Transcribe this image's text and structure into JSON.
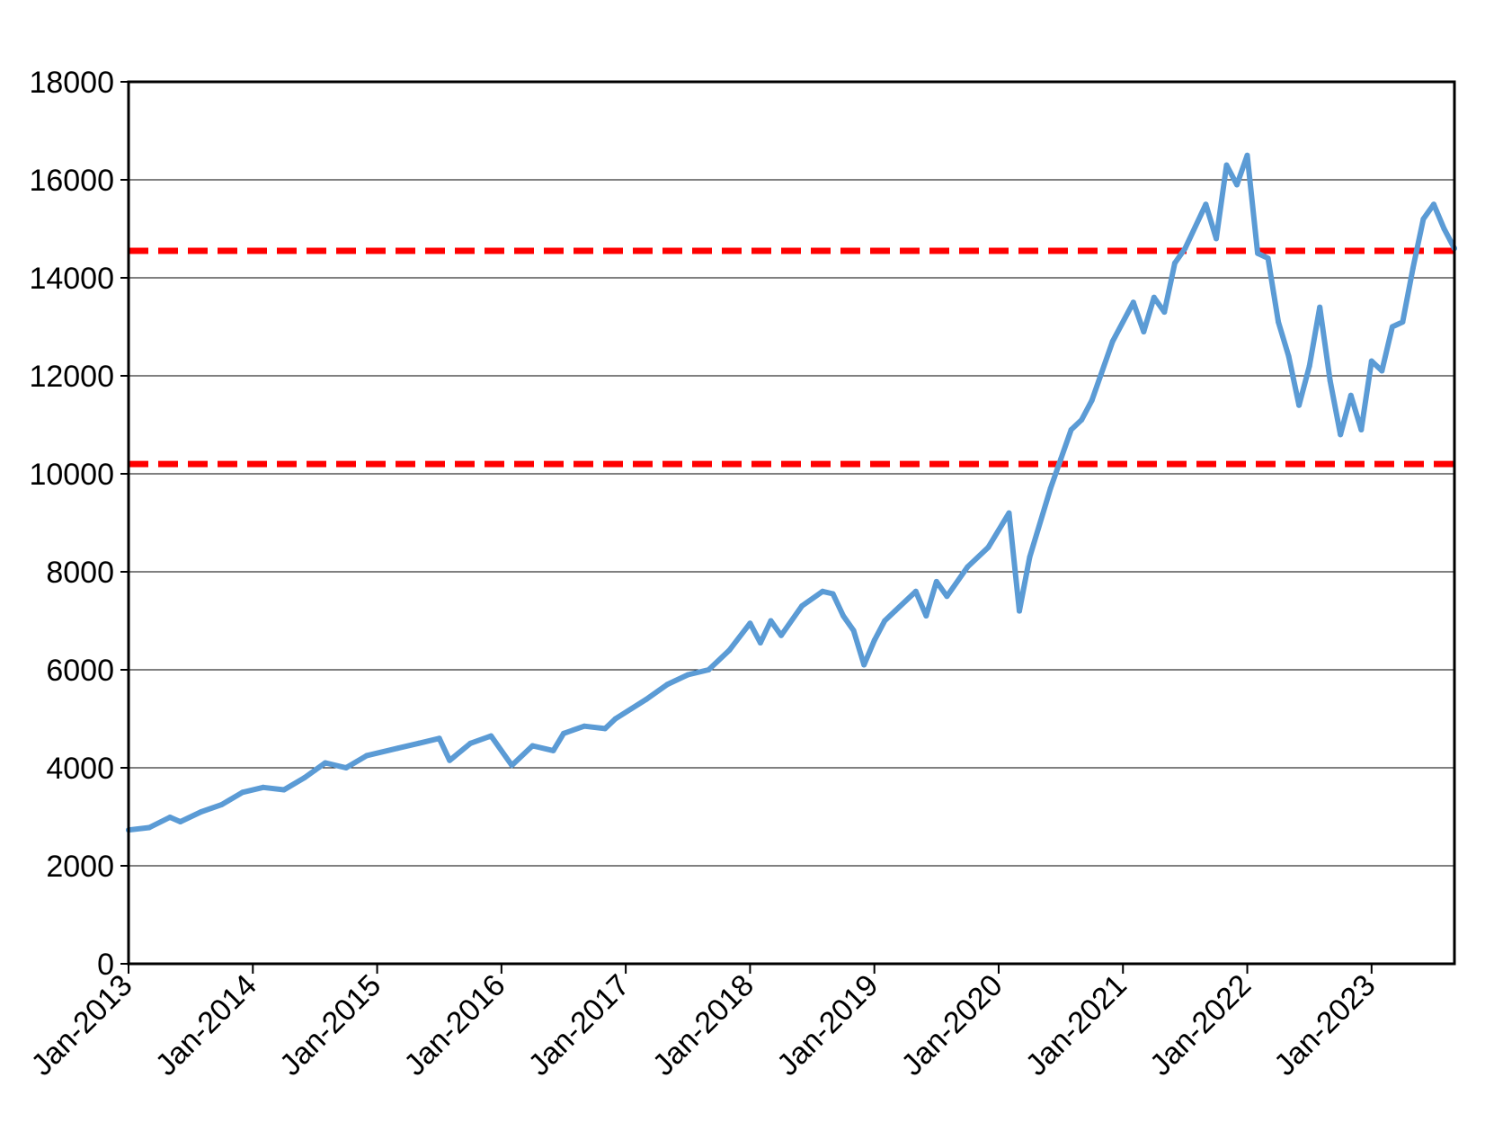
{
  "chart_data": {
    "type": "line",
    "title": "",
    "xlabel": "",
    "ylabel": "",
    "ylim": [
      0,
      18000
    ],
    "yticks": [
      0,
      2000,
      4000,
      6000,
      8000,
      10000,
      12000,
      14000,
      16000,
      18000
    ],
    "xlim": [
      "2013-01",
      "2023-09"
    ],
    "xticks": [
      "Jan-2013",
      "Jan-2014",
      "Jan-2015",
      "Jan-2016",
      "Jan-2017",
      "Jan-2018",
      "Jan-2019",
      "Jan-2020",
      "Jan-2021",
      "Jan-2022",
      "Jan-2023"
    ],
    "grid": "horizontal",
    "legend": "none",
    "series": [
      {
        "color": "#5b9bd5",
        "x": [
          "2013-01",
          "2013-03",
          "2013-05",
          "2013-06",
          "2013-08",
          "2013-10",
          "2013-12",
          "2014-02",
          "2014-04",
          "2014-06",
          "2014-07",
          "2014-08",
          "2014-10",
          "2014-12",
          "2015-03",
          "2015-05",
          "2015-07",
          "2015-08",
          "2015-10",
          "2015-12",
          "2016-02",
          "2016-04",
          "2016-06",
          "2016-07",
          "2016-09",
          "2016-11",
          "2016-12",
          "2017-03",
          "2017-05",
          "2017-07",
          "2017-09",
          "2017-11",
          "2018-01",
          "2018-02",
          "2018-03",
          "2018-04",
          "2018-06",
          "2018-08",
          "2018-09",
          "2018-10",
          "2018-11",
          "2018-12",
          "2019-01",
          "2019-02",
          "2019-03",
          "2019-05",
          "2019-06",
          "2019-07",
          "2019-08",
          "2019-10",
          "2019-12",
          "2020-02",
          "2020-03",
          "2020-04",
          "2020-06",
          "2020-07",
          "2020-08",
          "2020-09",
          "2020-10",
          "2020-12",
          "2021-02",
          "2021-03",
          "2021-04",
          "2021-05",
          "2021-06",
          "2021-07",
          "2021-09",
          "2021-10",
          "2021-11",
          "2021-12",
          "2022-01",
          "2022-02",
          "2022-03",
          "2022-04",
          "2022-05",
          "2022-06",
          "2022-07",
          "2022-08",
          "2022-09",
          "2022-10",
          "2022-11",
          "2022-12",
          "2023-01",
          "2023-02",
          "2023-03",
          "2023-04",
          "2023-05",
          "2023-06",
          "2023-07",
          "2023-08",
          "2023-09"
        ],
        "values": [
          2730,
          2780,
          2990,
          2900,
          3100,
          3250,
          3500,
          3600,
          3550,
          3800,
          3950,
          4100,
          4000,
          4250,
          4400,
          4500,
          4600,
          4150,
          4500,
          4650,
          4050,
          4450,
          4350,
          4700,
          4850,
          4800,
          5000,
          5400,
          5700,
          5900,
          6000,
          6400,
          6950,
          6550,
          7000,
          6700,
          7300,
          7600,
          7550,
          7100,
          6800,
          6100,
          6600,
          7000,
          7200,
          7600,
          7100,
          7800,
          7500,
          8100,
          8500,
          9200,
          7200,
          8300,
          9700,
          10300,
          10900,
          11100,
          11500,
          12700,
          13500,
          12900,
          13600,
          13300,
          14300,
          14600,
          15500,
          14800,
          16300,
          15900,
          16500,
          14500,
          14400,
          13100,
          12400,
          11400,
          12200,
          13400,
          11900,
          10800,
          11600,
          10900,
          12300,
          12100,
          13000,
          13100,
          14200,
          15200,
          15500,
          15000,
          14600
        ]
      }
    ],
    "reference_lines": [
      {
        "y": 14550,
        "color": "#ff0000",
        "style": "dashed"
      },
      {
        "y": 10200,
        "color": "#ff0000",
        "style": "dashed"
      }
    ]
  }
}
